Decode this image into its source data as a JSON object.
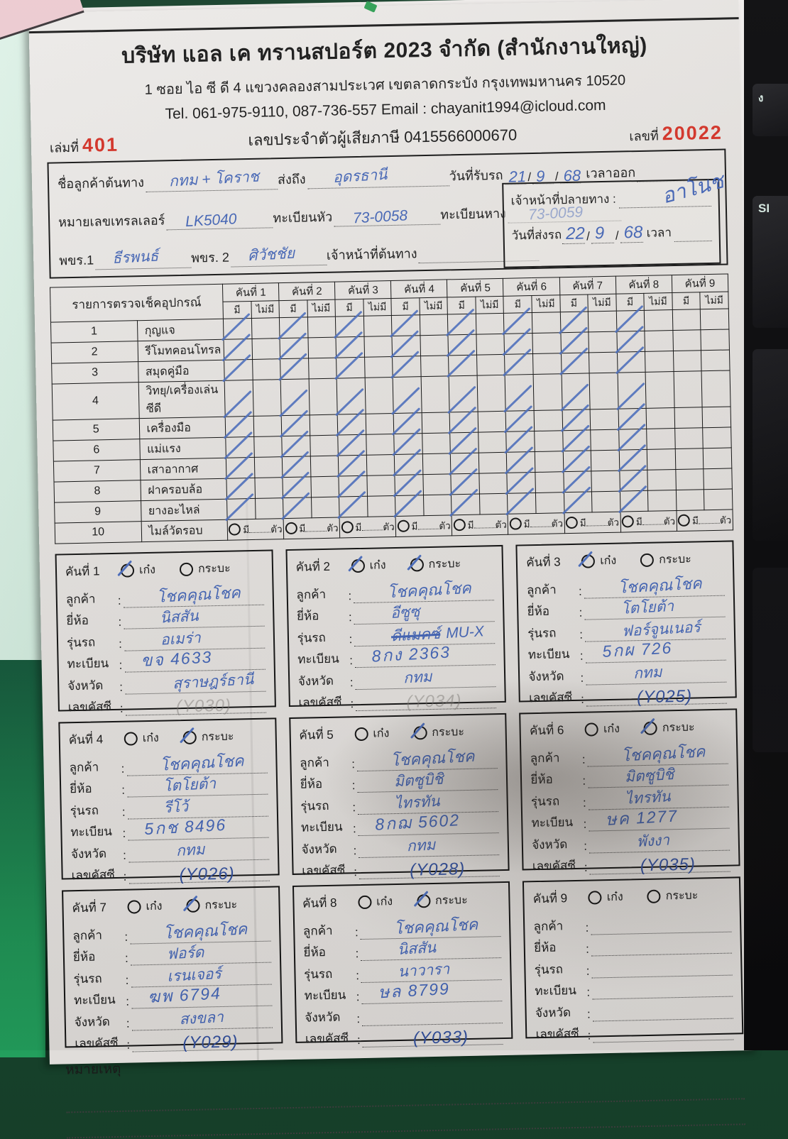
{
  "background": {
    "keyboard_key1": "ง",
    "keyboard_key2": "SI"
  },
  "header": {
    "company": "บริษัท แอล เค ทรานสปอร์ต 2023 จำกัด (สำนักงานใหญ่)",
    "address": "1 ซอย ไอ ซี ดี 4 แขวงคลองสามประเวศ เขตลาดกระบัง กรุงเทพมหานคร 10520",
    "contact": "Tel. 061-975-9110, 087-736-557 Email : chayanit1994@icloud.com",
    "book_label": "เล่มที่",
    "book_no": "401",
    "tax_line": "เลขประจำตัวผู้เสียภาษี 0415566000670",
    "doc_label": "เลขที่",
    "doc_no": "20022"
  },
  "info": {
    "origin_label": "ชื่อลูกค้าต้นทาง",
    "origin_value": "กทม + โคราช",
    "sendto_label": "ส่งถึง",
    "sendto_value": "อุดรธานี",
    "recv_date_label": "วันที่รับรถ",
    "recv_day": "21",
    "recv_month": "9",
    "recv_year": "68",
    "timeout_label": "เวลาออก",
    "trailer_label": "หมายเลขเทรลเลอร์",
    "trailer_value": "LK5040",
    "head_plate_label": "ทะเบียนหัว",
    "head_plate_value": "73-0058",
    "tail_plate_label": "ทะเบียนหาง",
    "tail_plate_value": "73-0059",
    "driver1_label": "พขร.1",
    "driver1_value": "ธีรพนธ์",
    "driver2_label": "พขร. 2",
    "driver2_value": "ศิวัชชัย",
    "origin_staff_label": "เจ้าหน้าที่ต้นทาง",
    "dest_staff_label": "เจ้าหน้าที่ปลายทาง :",
    "dest_staff_sig": "อาโนช",
    "send_date_label": "วันที่ส่งรถ",
    "send_day": "22",
    "send_month": "9",
    "send_year": "68",
    "time_label": "เวลา"
  },
  "table": {
    "title": "รายการตรวจเช็คอุปกรณ์",
    "vehicle_labels": [
      "คันที่ 1",
      "คันที่ 2",
      "คันที่ 3",
      "คันที่ 4",
      "คันที่ 5",
      "คันที่ 6",
      "คันที่ 7",
      "คันที่ 8",
      "คันที่ 9"
    ],
    "have_label": "มี",
    "none_label": "ไม่มี",
    "checked_vehicle_count": 8,
    "rows": [
      {
        "no": "1",
        "label": "กุญแจ"
      },
      {
        "no": "2",
        "label": "รีโมทคอนโทรล"
      },
      {
        "no": "3",
        "label": "สมุดคู่มือ"
      },
      {
        "no": "4",
        "label": "วิทยุ/เครื่องเล่นซีดี"
      },
      {
        "no": "5",
        "label": "เครื่องมือ"
      },
      {
        "no": "6",
        "label": "แม่แรง"
      },
      {
        "no": "7",
        "label": "เสาอากาศ"
      },
      {
        "no": "8",
        "label": "ฝาครอบล้อ"
      },
      {
        "no": "9",
        "label": "ยางอะไหล่"
      }
    ],
    "mileage_row": {
      "no": "10",
      "label": "ไมล์วัดรอบ",
      "have": "มี",
      "unit": "ตัว"
    }
  },
  "card_labels": {
    "sedan": "เก๋ง",
    "pickup": "กระบะ",
    "customer": "ลูกค้า",
    "brand": "ยี่ห้อ",
    "model": "รุ่นรถ",
    "plate": "ทะเบียน",
    "province": "จังหวัด",
    "chassis": "เลขคัสซี"
  },
  "cards": [
    {
      "title": "คันที่ 1",
      "sedan": true,
      "pickup": false,
      "customer": "โชคคุณโชค",
      "brand": "นิสสัน",
      "model": "อเมร่า",
      "plate": "ขจ 4633",
      "province": "สุราษฎร์ธานี",
      "chassis": "(Y030)",
      "chassis_faint": true
    },
    {
      "title": "คันที่ 2",
      "sedan": true,
      "pickup": true,
      "customer": "โชคคุณโชค",
      "brand": "อีซูซุ",
      "model": "MU-X",
      "model_struck": "ดีแมคซ์",
      "plate": "8กง 2363",
      "province": "กทม",
      "chassis": "(Y034)",
      "chassis_faint": true
    },
    {
      "title": "คันที่ 3",
      "sedan": true,
      "pickup": false,
      "customer": "โชคคุณโชค",
      "brand": "โตโยต้า",
      "model": "ฟอร์จูนเนอร์",
      "plate": "5กผ 726",
      "province": "กทม",
      "chassis": "(Y025)",
      "chassis_faint": false
    },
    {
      "title": "คันที่ 4",
      "sedan": false,
      "pickup": true,
      "customer": "โชคคุณโชค",
      "brand": "โตโยต้า",
      "model": "รีโว้",
      "plate": "5กช 8496",
      "province": "กทม",
      "chassis": "(Y026)",
      "chassis_faint": false
    },
    {
      "title": "คันที่ 5",
      "sedan": false,
      "pickup": true,
      "customer": "โชคคุณโชค",
      "brand": "มิตซูบิชิ",
      "model": "ไทรทัน",
      "plate": "8กฌ 5602",
      "province": "กทม",
      "chassis": "(Y028)",
      "chassis_faint": false
    },
    {
      "title": "คันที่ 6",
      "sedan": false,
      "pickup": true,
      "customer": "โชคคุณโชค",
      "brand": "มิตซูบิชิ",
      "model": "ไทรทัน",
      "plate": "ษค 1277",
      "province": "พังงา",
      "chassis": "(Y035)",
      "chassis_faint": false
    },
    {
      "title": "คันที่ 7",
      "sedan": false,
      "pickup": true,
      "customer": "โชคคุณโชค",
      "brand": "ฟอร์ด",
      "model": "เรนเจอร์",
      "plate": "ฆพ 6794",
      "province": "สงขลา",
      "chassis": "(Y029)",
      "chassis_faint": false
    },
    {
      "title": "คันที่ 8",
      "sedan": false,
      "pickup": true,
      "customer": "โชคคุณโชค",
      "brand": "นิสสัน",
      "model": "นาวารา",
      "plate": "ษล 8799",
      "province": "",
      "chassis": "(Y033)",
      "chassis_faint": false
    },
    {
      "title": "คันที่ 9",
      "sedan": false,
      "pickup": false,
      "customer": "",
      "brand": "",
      "model": "",
      "plate": "",
      "province": "",
      "chassis": "",
      "chassis_faint": false
    }
  ],
  "notes": {
    "label": "หมายเหตุ"
  }
}
